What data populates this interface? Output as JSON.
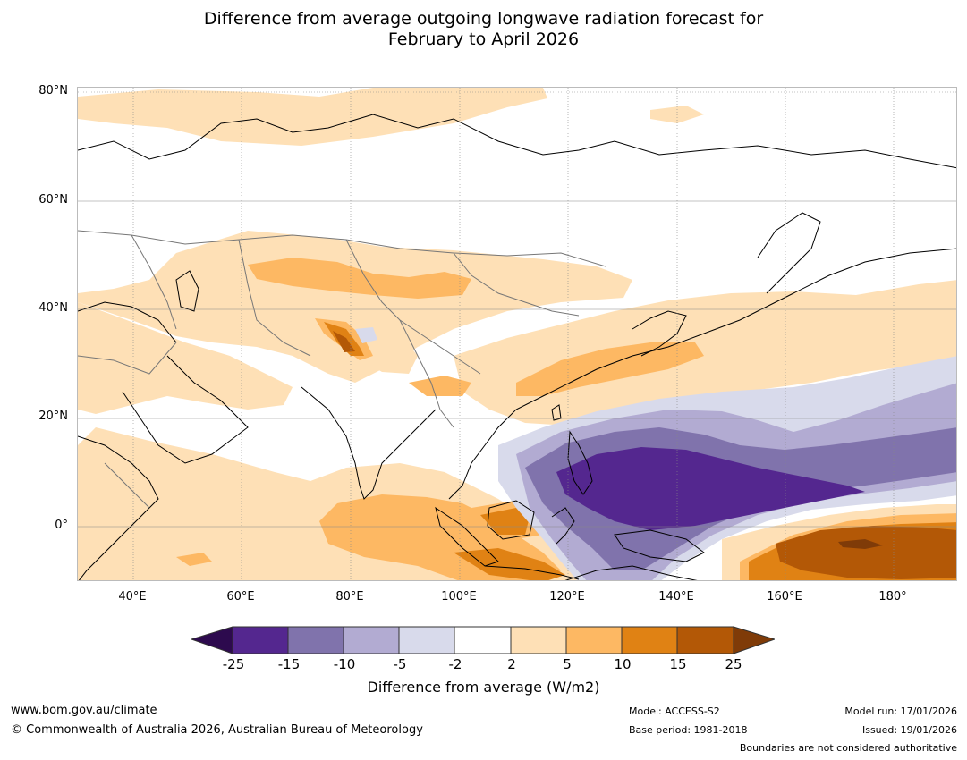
{
  "title": {
    "line1": "Difference from average outgoing longwave radiation forecast for",
    "line2": "February to April 2026"
  },
  "map": {
    "lat_labels": [
      "80°N",
      "60°N",
      "40°N",
      "20°N",
      "0°"
    ],
    "lon_labels": [
      "40°E",
      "60°E",
      "80°E",
      "100°E",
      "120°E",
      "140°E",
      "160°E",
      "180°"
    ]
  },
  "colorbar": {
    "ticks": [
      "-25",
      "-15",
      "-10",
      "-5",
      "-2",
      "2",
      "5",
      "10",
      "15",
      "25"
    ],
    "label": "Difference from average (W/m2)",
    "colors": {
      "below_min": "#2d0a4e",
      "bin_-25_-15": "#54278f",
      "bin_-15_-10": "#8073ac",
      "bin_-10_-5": "#b2abd2",
      "bin_-5_-2": "#d8daeb",
      "bin_-2_2": "#ffffff",
      "bin_2_5": "#fee0b6",
      "bin_5_10": "#fdb863",
      "bin_10_15": "#e08214",
      "bin_15_25": "#b35806",
      "above_max": "#7f3b08"
    }
  },
  "footer": {
    "website": "www.bom.gov.au/climate",
    "copyright": "© Commonwealth of Australia 2026, Australian Bureau of Meteorology",
    "model": "Model: ACCESS-S2",
    "base_period": "Base period: 1981-2018",
    "model_run": "Model run: 17/01/2026",
    "issued": "Issued: 19/01/2026",
    "disclaimer": "Boundaries are not considered authoritative"
  }
}
